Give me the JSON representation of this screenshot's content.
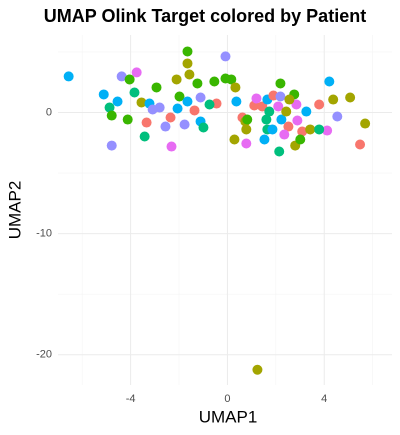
{
  "chart_data": {
    "type": "scatter",
    "title": "UMAP Olink Target colored by Patient",
    "x_label": "UMAP1",
    "y_label": "UMAP2",
    "xlim": [
      -7.0,
      6.8
    ],
    "ylim": [
      -22.5,
      6.4
    ],
    "xticks": [
      -4,
      0,
      4
    ],
    "yticks": [
      -20,
      -10,
      0
    ],
    "xminor": [
      -6,
      -2,
      2,
      6
    ],
    "yminor": [
      -15,
      -5,
      5
    ],
    "grid": true,
    "x": [
      -6.56,
      -5.11,
      -4.37,
      -3.75,
      -4.04,
      -4.54,
      -4.87,
      -4.78,
      -4.12,
      -4.78,
      -3.84,
      -3.55,
      -3.22,
      -2.93,
      -2.8,
      -3.34,
      -3.42,
      -2.35,
      -2.56,
      -2.31,
      -2.1,
      -1.65,
      -1.65,
      -1.98,
      -2.06,
      -1.65,
      -1.24,
      -1.11,
      -1.36,
      -1.77,
      -1.11,
      -0.99,
      -0.45,
      -0.54,
      -0.08,
      -0.08,
      0.16,
      0.37,
      0.33,
      0.62,
      0.74,
      0.78,
      0.29,
      0.78,
      0.82,
      1.11,
      1.44,
      1.65,
      1.61,
      1.65,
      1.53,
      1.9,
      2.19,
      2.19,
      2.1,
      2.23,
      2.43,
      2.52,
      2.14,
      2.35,
      2.76,
      2.85,
      2.89,
      2.8,
      3.09,
      3.26,
      3.01,
      3.79,
      4.21,
      4.12,
      4.54,
      4.37,
      5.07,
      5.69,
      5.48,
      1.24,
      3.42,
      3.79,
      -3.09,
      1.2,
      1.73,
      2.56,
      -0.74,
      -1.57,
      1.86
    ],
    "y": [
      2.98,
      1.49,
      2.98,
      3.31,
      2.73,
      0.91,
      0.41,
      -0.25,
      -0.58,
      -2.73,
      1.65,
      0.83,
      0.74,
      2.07,
      0.41,
      -0.83,
      -1.98,
      -0.41,
      -1.16,
      -2.81,
      2.73,
      4.05,
      5.04,
      1.32,
      0.33,
      0.91,
      2.4,
      1.24,
      0.17,
      -0.99,
      -0.74,
      -1.24,
      0.74,
      2.56,
      4.63,
      2.81,
      2.73,
      0.91,
      2.07,
      -0.41,
      -0.74,
      -1.4,
      -2.23,
      -2.56,
      -0.58,
      0.58,
      0.5,
      1.07,
      -0.58,
      -1.4,
      -2.23,
      1.4,
      2.4,
      1.32,
      0.5,
      -0.58,
      0.08,
      -1.16,
      -3.22,
      -1.82,
      1.49,
      0.66,
      -0.66,
      -2.73,
      -1.57,
      0.08,
      -2.23,
      0.66,
      2.56,
      -1.49,
      -0.33,
      1.07,
      1.24,
      -0.91,
      -2.64,
      -21.24,
      -1.4,
      -1.4,
      0.25,
      1.16,
      0.08,
      1.07,
      0.66,
      3.14,
      -1.4
    ],
    "colors": [
      "#00B0F6",
      "#00B0F6",
      "#9590FF",
      "#E76BF3",
      "#39B600",
      "#00B0F6",
      "#00BF7D",
      "#39B600",
      "#39B600",
      "#9590FF",
      "#00BF7D",
      "#A3A500",
      "#00B0F6",
      "#39B600",
      "#9590FF",
      "#F8766D",
      "#00BF7D",
      "#F8766D",
      "#9590FF",
      "#E76BF3",
      "#A3A500",
      "#A3A500",
      "#39B600",
      "#39B600",
      "#00B0F6",
      "#00B0F6",
      "#39B600",
      "#9590FF",
      "#F8766D",
      "#9590FF",
      "#00B0F6",
      "#00BF7D",
      "#F8766D",
      "#39B600",
      "#9590FF",
      "#39B600",
      "#39B600",
      "#00B0F6",
      "#A3A500",
      "#F8766D",
      "#A3A500",
      "#A3A500",
      "#A3A500",
      "#E76BF3",
      "#39B600",
      "#F8766D",
      "#F8766D",
      "#00B0F6",
      "#00BF7D",
      "#00BF7D",
      "#00B0F6",
      "#F8766D",
      "#39B600",
      "#9590FF",
      "#E76BF3",
      "#00B0F6",
      "#A3A500",
      "#F8766D",
      "#00BF7D",
      "#E76BF3",
      "#39B600",
      "#E76BF3",
      "#E76BF3",
      "#A3A500",
      "#F8766D",
      "#00B0F6",
      "#39B600",
      "#F8766D",
      "#00B0F6",
      "#E76BF3",
      "#9590FF",
      "#A3A500",
      "#A3A500",
      "#A3A500",
      "#F8766D",
      "#A3A500",
      "#A3A500",
      "#00BF7D",
      "#9590FF",
      "#E76BF3",
      "#00BF7D",
      "#A3A500",
      "#00BF7D",
      "#A3A500",
      "#00B0F6"
    ]
  }
}
